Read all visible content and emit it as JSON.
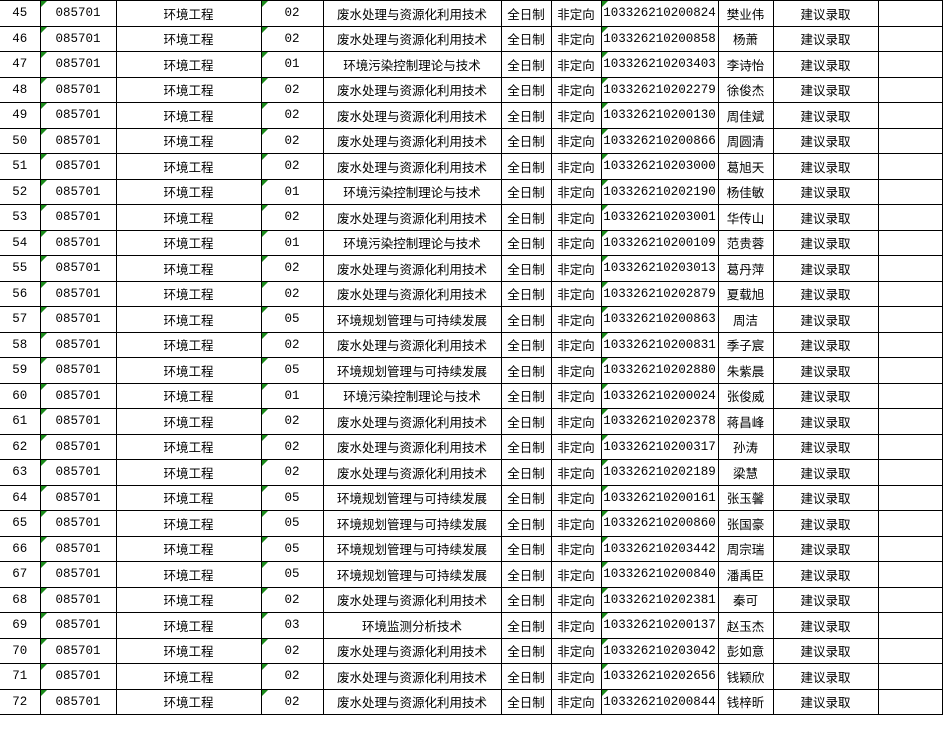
{
  "colors": {
    "grid": "#000000",
    "error_indicator": "#1a8a1a"
  },
  "rows": [
    {
      "no": "45",
      "code": "085701",
      "major": "环境工程",
      "dir_code": "02",
      "direction": "废水处理与资源化利用技术",
      "mode": "全日制",
      "type": "非定向",
      "exam_id": "103326210200824",
      "name": "樊业伟",
      "result": "建议录取"
    },
    {
      "no": "46",
      "code": "085701",
      "major": "环境工程",
      "dir_code": "02",
      "direction": "废水处理与资源化利用技术",
      "mode": "全日制",
      "type": "非定向",
      "exam_id": "103326210200858",
      "name": "杨萧",
      "result": "建议录取"
    },
    {
      "no": "47",
      "code": "085701",
      "major": "环境工程",
      "dir_code": "01",
      "direction": "环境污染控制理论与技术",
      "mode": "全日制",
      "type": "非定向",
      "exam_id": "103326210203403",
      "name": "李诗怡",
      "result": "建议录取"
    },
    {
      "no": "48",
      "code": "085701",
      "major": "环境工程",
      "dir_code": "02",
      "direction": "废水处理与资源化利用技术",
      "mode": "全日制",
      "type": "非定向",
      "exam_id": "103326210202279",
      "name": "徐俊杰",
      "result": "建议录取"
    },
    {
      "no": "49",
      "code": "085701",
      "major": "环境工程",
      "dir_code": "02",
      "direction": "废水处理与资源化利用技术",
      "mode": "全日制",
      "type": "非定向",
      "exam_id": "103326210200130",
      "name": "周佳斌",
      "result": "建议录取"
    },
    {
      "no": "50",
      "code": "085701",
      "major": "环境工程",
      "dir_code": "02",
      "direction": "废水处理与资源化利用技术",
      "mode": "全日制",
      "type": "非定向",
      "exam_id": "103326210200866",
      "name": "周圆清",
      "result": "建议录取"
    },
    {
      "no": "51",
      "code": "085701",
      "major": "环境工程",
      "dir_code": "02",
      "direction": "废水处理与资源化利用技术",
      "mode": "全日制",
      "type": "非定向",
      "exam_id": "103326210203000",
      "name": "葛旭天",
      "result": "建议录取"
    },
    {
      "no": "52",
      "code": "085701",
      "major": "环境工程",
      "dir_code": "01",
      "direction": "环境污染控制理论与技术",
      "mode": "全日制",
      "type": "非定向",
      "exam_id": "103326210202190",
      "name": "杨佳敏",
      "result": "建议录取"
    },
    {
      "no": "53",
      "code": "085701",
      "major": "环境工程",
      "dir_code": "02",
      "direction": "废水处理与资源化利用技术",
      "mode": "全日制",
      "type": "非定向",
      "exam_id": "103326210203001",
      "name": "华传山",
      "result": "建议录取"
    },
    {
      "no": "54",
      "code": "085701",
      "major": "环境工程",
      "dir_code": "01",
      "direction": "环境污染控制理论与技术",
      "mode": "全日制",
      "type": "非定向",
      "exam_id": "103326210200109",
      "name": "范贵蓉",
      "result": "建议录取"
    },
    {
      "no": "55",
      "code": "085701",
      "major": "环境工程",
      "dir_code": "02",
      "direction": "废水处理与资源化利用技术",
      "mode": "全日制",
      "type": "非定向",
      "exam_id": "103326210203013",
      "name": "葛丹萍",
      "result": "建议录取"
    },
    {
      "no": "56",
      "code": "085701",
      "major": "环境工程",
      "dir_code": "02",
      "direction": "废水处理与资源化利用技术",
      "mode": "全日制",
      "type": "非定向",
      "exam_id": "103326210202879",
      "name": "夏载旭",
      "result": "建议录取"
    },
    {
      "no": "57",
      "code": "085701",
      "major": "环境工程",
      "dir_code": "05",
      "direction": "环境规划管理与可持续发展",
      "mode": "全日制",
      "type": "非定向",
      "exam_id": "103326210200863",
      "name": "周洁",
      "result": "建议录取"
    },
    {
      "no": "58",
      "code": "085701",
      "major": "环境工程",
      "dir_code": "02",
      "direction": "废水处理与资源化利用技术",
      "mode": "全日制",
      "type": "非定向",
      "exam_id": "103326210200831",
      "name": "季子宸",
      "result": "建议录取"
    },
    {
      "no": "59",
      "code": "085701",
      "major": "环境工程",
      "dir_code": "05",
      "direction": "环境规划管理与可持续发展",
      "mode": "全日制",
      "type": "非定向",
      "exam_id": "103326210202880",
      "name": "朱紫晨",
      "result": "建议录取"
    },
    {
      "no": "60",
      "code": "085701",
      "major": "环境工程",
      "dir_code": "01",
      "direction": "环境污染控制理论与技术",
      "mode": "全日制",
      "type": "非定向",
      "exam_id": "103326210200024",
      "name": "张俊威",
      "result": "建议录取"
    },
    {
      "no": "61",
      "code": "085701",
      "major": "环境工程",
      "dir_code": "02",
      "direction": "废水处理与资源化利用技术",
      "mode": "全日制",
      "type": "非定向",
      "exam_id": "103326210202378",
      "name": "蒋昌峰",
      "result": "建议录取"
    },
    {
      "no": "62",
      "code": "085701",
      "major": "环境工程",
      "dir_code": "02",
      "direction": "废水处理与资源化利用技术",
      "mode": "全日制",
      "type": "非定向",
      "exam_id": "103326210200317",
      "name": "孙涛",
      "result": "建议录取"
    },
    {
      "no": "63",
      "code": "085701",
      "major": "环境工程",
      "dir_code": "02",
      "direction": "废水处理与资源化利用技术",
      "mode": "全日制",
      "type": "非定向",
      "exam_id": "103326210202189",
      "name": "梁慧",
      "result": "建议录取"
    },
    {
      "no": "64",
      "code": "085701",
      "major": "环境工程",
      "dir_code": "05",
      "direction": "环境规划管理与可持续发展",
      "mode": "全日制",
      "type": "非定向",
      "exam_id": "103326210200161",
      "name": "张玉馨",
      "result": "建议录取"
    },
    {
      "no": "65",
      "code": "085701",
      "major": "环境工程",
      "dir_code": "05",
      "direction": "环境规划管理与可持续发展",
      "mode": "全日制",
      "type": "非定向",
      "exam_id": "103326210200860",
      "name": "张国豪",
      "result": "建议录取"
    },
    {
      "no": "66",
      "code": "085701",
      "major": "环境工程",
      "dir_code": "05",
      "direction": "环境规划管理与可持续发展",
      "mode": "全日制",
      "type": "非定向",
      "exam_id": "103326210203442",
      "name": "周宗瑞",
      "result": "建议录取"
    },
    {
      "no": "67",
      "code": "085701",
      "major": "环境工程",
      "dir_code": "05",
      "direction": "环境规划管理与可持续发展",
      "mode": "全日制",
      "type": "非定向",
      "exam_id": "103326210200840",
      "name": "潘禹臣",
      "result": "建议录取"
    },
    {
      "no": "68",
      "code": "085701",
      "major": "环境工程",
      "dir_code": "02",
      "direction": "废水处理与资源化利用技术",
      "mode": "全日制",
      "type": "非定向",
      "exam_id": "103326210202381",
      "name": "秦可",
      "result": "建议录取"
    },
    {
      "no": "69",
      "code": "085701",
      "major": "环境工程",
      "dir_code": "03",
      "direction": "环境监测分析技术",
      "mode": "全日制",
      "type": "非定向",
      "exam_id": "103326210200137",
      "name": "赵玉杰",
      "result": "建议录取"
    },
    {
      "no": "70",
      "code": "085701",
      "major": "环境工程",
      "dir_code": "02",
      "direction": "废水处理与资源化利用技术",
      "mode": "全日制",
      "type": "非定向",
      "exam_id": "103326210203042",
      "name": "彭如意",
      "result": "建议录取"
    },
    {
      "no": "71",
      "code": "085701",
      "major": "环境工程",
      "dir_code": "02",
      "direction": "废水处理与资源化利用技术",
      "mode": "全日制",
      "type": "非定向",
      "exam_id": "103326210202656",
      "name": "钱颖欣",
      "result": "建议录取"
    },
    {
      "no": "72",
      "code": "085701",
      "major": "环境工程",
      "dir_code": "02",
      "direction": "废水处理与资源化利用技术",
      "mode": "全日制",
      "type": "非定向",
      "exam_id": "103326210200844",
      "name": "钱梓昕",
      "result": "建议录取"
    }
  ]
}
